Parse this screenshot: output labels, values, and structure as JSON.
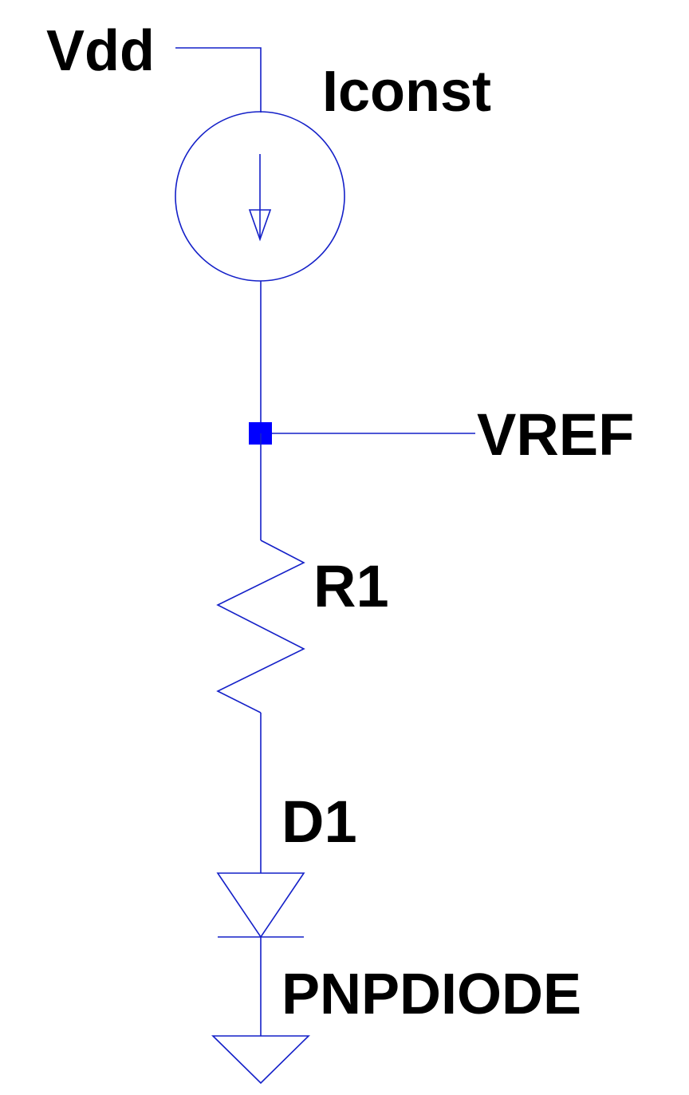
{
  "colors": {
    "background": "#ffffff",
    "wire": "#1420c8",
    "junction": "#0000ff",
    "text": "#000000"
  },
  "labels": {
    "supply": "Vdd",
    "current_source": "Iconst",
    "output_net": "VREF",
    "resistor": "R1",
    "diode": "D1",
    "diode_model": "PNPDIODE"
  },
  "icons": {
    "current_source": "current-source-icon",
    "resistor": "resistor-icon",
    "diode": "diode-icon",
    "ground": "ground-icon",
    "junction": "junction-dot-icon"
  }
}
